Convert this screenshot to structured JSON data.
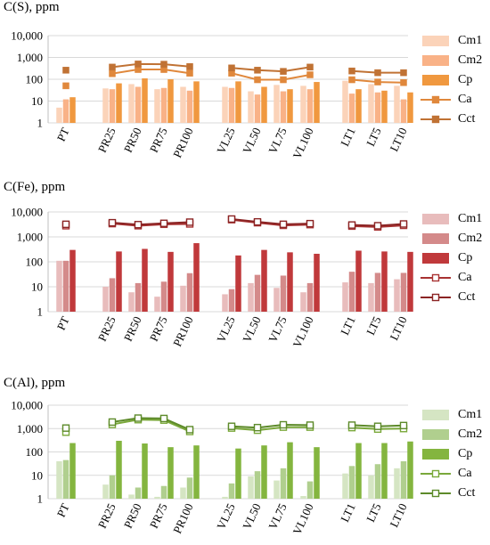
{
  "chart_data": [
    {
      "type": "bar",
      "title": "C(S), ppm",
      "yscale": "log",
      "ylim": [
        1,
        10000
      ],
      "ytick_labels": [
        "1",
        "10",
        "100",
        "1,000",
        "10,000"
      ],
      "categories": [
        "PT",
        "PR25",
        "PR50",
        "PR75",
        "PR100",
        "VL25",
        "VL50",
        "VL75",
        "VL100",
        "LT1",
        "LT5",
        "LT10"
      ],
      "category_groups": [
        [
          "PT"
        ],
        [
          "PR25",
          "PR50",
          "PR75",
          "PR100"
        ],
        [
          "VL25",
          "VL50",
          "VL75",
          "VL100"
        ],
        [
          "LT1",
          "LT5",
          "LT10"
        ]
      ],
      "grid": true,
      "legend": "right",
      "colors": {
        "Cm1": "#fbd3b9",
        "Cm2": "#f9b287",
        "Cp": "#f0983f",
        "Ca": "#e0883c",
        "Cct": "#c07234"
      },
      "series": [
        {
          "name": "Cm1",
          "kind": "bar",
          "values": [
            5,
            38,
            60,
            35,
            45,
            45,
            28,
            55,
            50,
            85,
            60,
            50
          ]
        },
        {
          "name": "Cm2",
          "kind": "bar",
          "values": [
            12,
            35,
            45,
            40,
            30,
            40,
            20,
            28,
            35,
            22,
            25,
            12
          ]
        },
        {
          "name": "Cp",
          "kind": "bar",
          "values": [
            15,
            65,
            110,
            100,
            80,
            80,
            45,
            35,
            75,
            35,
            30,
            25
          ]
        },
        {
          "name": "Ca",
          "kind": "line",
          "marker": "square",
          "values": [
            50,
            180,
            280,
            280,
            190,
            190,
            95,
            95,
            160,
            95,
            75,
            70
          ]
        },
        {
          "name": "Cct",
          "kind": "line",
          "marker": "square",
          "values": [
            260,
            360,
            500,
            490,
            380,
            330,
            260,
            230,
            360,
            240,
            200,
            200
          ]
        }
      ]
    },
    {
      "type": "bar",
      "title": "C(Fe), ppm",
      "yscale": "log",
      "ylim": [
        1,
        10000
      ],
      "ytick_labels": [
        "1",
        "10",
        "100",
        "1,000",
        "10,000"
      ],
      "categories": [
        "PT",
        "PR25",
        "PR50",
        "PR75",
        "PR100",
        "VL25",
        "VL50",
        "VL75",
        "VL100",
        "LT1",
        "LT5",
        "LT10"
      ],
      "category_groups": [
        [
          "PT"
        ],
        [
          "PR25",
          "PR50",
          "PR75",
          "PR100"
        ],
        [
          "VL25",
          "VL50",
          "VL75",
          "VL100"
        ],
        [
          "LT1",
          "LT5",
          "LT10"
        ]
      ],
      "grid": true,
      "legend": "right",
      "colors": {
        "Cm1": "#e8bcbc",
        "Cm2": "#d48a8a",
        "Cp": "#c0393b",
        "Ca": "#a83232",
        "Cct": "#8b2424"
      },
      "series": [
        {
          "name": "Cm1",
          "kind": "bar",
          "values": [
            110,
            10,
            6,
            4,
            11,
            5,
            14,
            9,
            6,
            15,
            14,
            20
          ]
        },
        {
          "name": "Cm2",
          "kind": "bar",
          "values": [
            110,
            22,
            14,
            16,
            35,
            8,
            30,
            28,
            14,
            40,
            36,
            36
          ]
        },
        {
          "name": "Cp",
          "kind": "bar",
          "values": [
            300,
            260,
            330,
            250,
            560,
            180,
            300,
            240,
            210,
            280,
            260,
            250
          ]
        },
        {
          "name": "Ca",
          "kind": "line",
          "marker": "hollow-square",
          "values": [
            2800,
            3400,
            2800,
            3200,
            3300,
            4900,
            3700,
            2900,
            3100,
            2700,
            2500,
            2900
          ]
        },
        {
          "name": "Cct",
          "kind": "line",
          "marker": "hollow-square",
          "values": [
            3200,
            3700,
            3100,
            3500,
            3900,
            5200,
            4000,
            3200,
            3400,
            3000,
            2800,
            3300
          ]
        }
      ]
    },
    {
      "type": "bar",
      "title": "C(Al), ppm",
      "yscale": "log",
      "ylim": [
        1,
        10000
      ],
      "ytick_labels": [
        "1",
        "10",
        "100",
        "1,000",
        "10,000"
      ],
      "categories": [
        "PT",
        "PR25",
        "PR50",
        "PR75",
        "PR100",
        "VL25",
        "VL50",
        "VL75",
        "VL100",
        "LT1",
        "LT5",
        "LT10"
      ],
      "category_groups": [
        [
          "PT"
        ],
        [
          "PR25",
          "PR50",
          "PR75",
          "PR100"
        ],
        [
          "VL25",
          "VL50",
          "VL75",
          "VL100"
        ],
        [
          "LT1",
          "LT5",
          "LT10"
        ]
      ],
      "grid": true,
      "legend": "right",
      "colors": {
        "Cm1": "#d5e5c3",
        "Cm2": "#b0cf8e",
        "Cp": "#84b53f",
        "Ca": "#7aa83a",
        "Cct": "#5d8a2a"
      },
      "series": [
        {
          "name": "Cm1",
          "kind": "bar",
          "values": [
            40,
            4,
            1.5,
            1.2,
            3,
            1.2,
            9,
            6,
            1.3,
            12,
            10,
            20
          ]
        },
        {
          "name": "Cm2",
          "kind": "bar",
          "values": [
            45,
            10,
            3,
            3.5,
            8,
            4.5,
            15,
            20,
            5.5,
            25,
            30,
            40
          ]
        },
        {
          "name": "Cp",
          "kind": "bar",
          "values": [
            240,
            300,
            230,
            160,
            190,
            140,
            190,
            260,
            160,
            240,
            240,
            280
          ]
        },
        {
          "name": "Ca",
          "kind": "line",
          "marker": "hollow-square",
          "values": [
            700,
            1500,
            2400,
            2300,
            750,
            1050,
            850,
            1150,
            1150,
            1100,
            950,
            1000
          ]
        },
        {
          "name": "Cct",
          "kind": "line",
          "marker": "hollow-square",
          "values": [
            1050,
            1900,
            2800,
            2700,
            900,
            1250,
            1100,
            1450,
            1400,
            1400,
            1250,
            1350
          ]
        }
      ]
    }
  ]
}
